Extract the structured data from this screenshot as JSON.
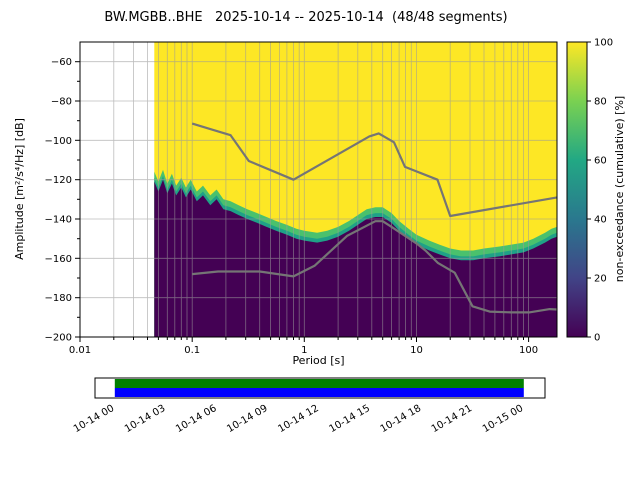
{
  "chart_data": {
    "type": "heatmap",
    "title": "BW.MGBB..BHE   2025-10-14 -- 2025-10-14  (48/48 segments)",
    "xlabel": "Period [s]",
    "ylabel": "Amplitude [m²/s⁴/Hz] [dB]",
    "x_scale": "log",
    "xlim": [
      0.01,
      179
    ],
    "ylim": [
      -200,
      -50
    ],
    "grid": true,
    "x_ticks": [
      {
        "value": 0.01,
        "label": "0.01"
      },
      {
        "value": 0.1,
        "label": "0.1"
      },
      {
        "value": 1,
        "label": "1"
      },
      {
        "value": 10,
        "label": "10"
      },
      {
        "value": 100,
        "label": "100"
      }
    ],
    "y_ticks": [
      {
        "value": -60,
        "label": "−60"
      },
      {
        "value": -80,
        "label": "−80"
      },
      {
        "value": -100,
        "label": "−100"
      },
      {
        "value": -120,
        "label": "−120"
      },
      {
        "value": -140,
        "label": "−140"
      },
      {
        "value": -160,
        "label": "−160"
      },
      {
        "value": -180,
        "label": "−180"
      },
      {
        "value": -200,
        "label": "−200"
      }
    ],
    "data_period_range": [
      0.046,
      179
    ],
    "mode_curve": {
      "comment": "top of the high-probability (dark) region; above it non-exceedance=100% (yellow)",
      "periods": [
        0.046,
        0.05,
        0.055,
        0.06,
        0.066,
        0.072,
        0.08,
        0.088,
        0.097,
        0.11,
        0.125,
        0.145,
        0.165,
        0.19,
        0.22,
        0.26,
        0.31,
        0.38,
        0.46,
        0.56,
        0.7,
        0.85,
        1.0,
        1.3,
        1.6,
        2.0,
        2.5,
        3.0,
        3.6,
        4.3,
        5.0,
        6.0,
        7.0,
        8.5,
        10,
        13,
        16,
        20,
        25,
        32,
        40,
        55,
        70,
        90,
        110,
        140,
        160,
        179
      ],
      "db": [
        -121,
        -126,
        -120,
        -127,
        -122,
        -128,
        -124,
        -129,
        -125,
        -131,
        -128,
        -133,
        -130,
        -135,
        -136,
        -138,
        -140,
        -142,
        -144,
        -146,
        -148,
        -150,
        -151,
        -152,
        -151,
        -149,
        -146,
        -143,
        -140,
        -139,
        -139,
        -142,
        -146,
        -150,
        -153,
        -156,
        -158,
        -160,
        -161,
        -161,
        -160,
        -159,
        -158,
        -157,
        -155,
        -152,
        -150,
        -149
      ]
    },
    "band_offsets_db": [
      5,
      2
    ],
    "colors": {
      "high": "#fde725",
      "band_outer": "#4ac16d",
      "band_inner": "#1fa187",
      "low": "#440154",
      "grid": "#9a9a9a"
    },
    "noise_models": {
      "color": "#757575",
      "nhnm": {
        "periods": [
          0.1,
          0.22,
          0.32,
          0.8,
          3.8,
          4.6,
          6.3,
          7.9,
          15.4,
          20.0,
          179
        ],
        "db": [
          -91.5,
          -97.4,
          -110.5,
          -120.0,
          -98.0,
          -96.5,
          -101.0,
          -113.5,
          -120.0,
          -138.5,
          -129.0
        ]
      },
      "nlnm": {
        "periods": [
          0.1,
          0.17,
          0.4,
          0.8,
          1.24,
          2.4,
          4.3,
          5.0,
          6.0,
          10.0,
          12.0,
          15.6,
          21.9,
          31.6,
          45.0,
          70.0,
          101,
          154,
          179
        ],
        "db": [
          -168.0,
          -166.7,
          -166.7,
          -169.2,
          -163.7,
          -148.6,
          -141.1,
          -141.1,
          -144.0,
          -152.4,
          -156.0,
          -162.4,
          -167.3,
          -184.4,
          -187.1,
          -187.5,
          -187.5,
          -185.8,
          -186.0
        ]
      }
    },
    "colorbar": {
      "label": "non-exceedance (cumulative) [%]",
      "range": [
        0,
        100
      ],
      "ticks": [
        {
          "value": 0,
          "label": "0"
        },
        {
          "value": 20,
          "label": "20"
        },
        {
          "value": 40,
          "label": "40"
        },
        {
          "value": 60,
          "label": "60"
        },
        {
          "value": 80,
          "label": "80"
        },
        {
          "value": 100,
          "label": "100"
        }
      ],
      "gradient_stops": [
        "#440154",
        "#414487",
        "#2a788e",
        "#22a884",
        "#7ad151",
        "#fde725"
      ]
    },
    "availability": {
      "labels": [
        "10-14 00",
        "10-14 03",
        "10-14 06",
        "10-14 09",
        "10-14 12",
        "10-14 15",
        "10-14 18",
        "10-14 21",
        "10-15 00"
      ],
      "bar_colors": [
        "#008000",
        "#0000ff"
      ],
      "coverage_start_frac": 0.044,
      "coverage_end_frac": 0.953
    }
  }
}
